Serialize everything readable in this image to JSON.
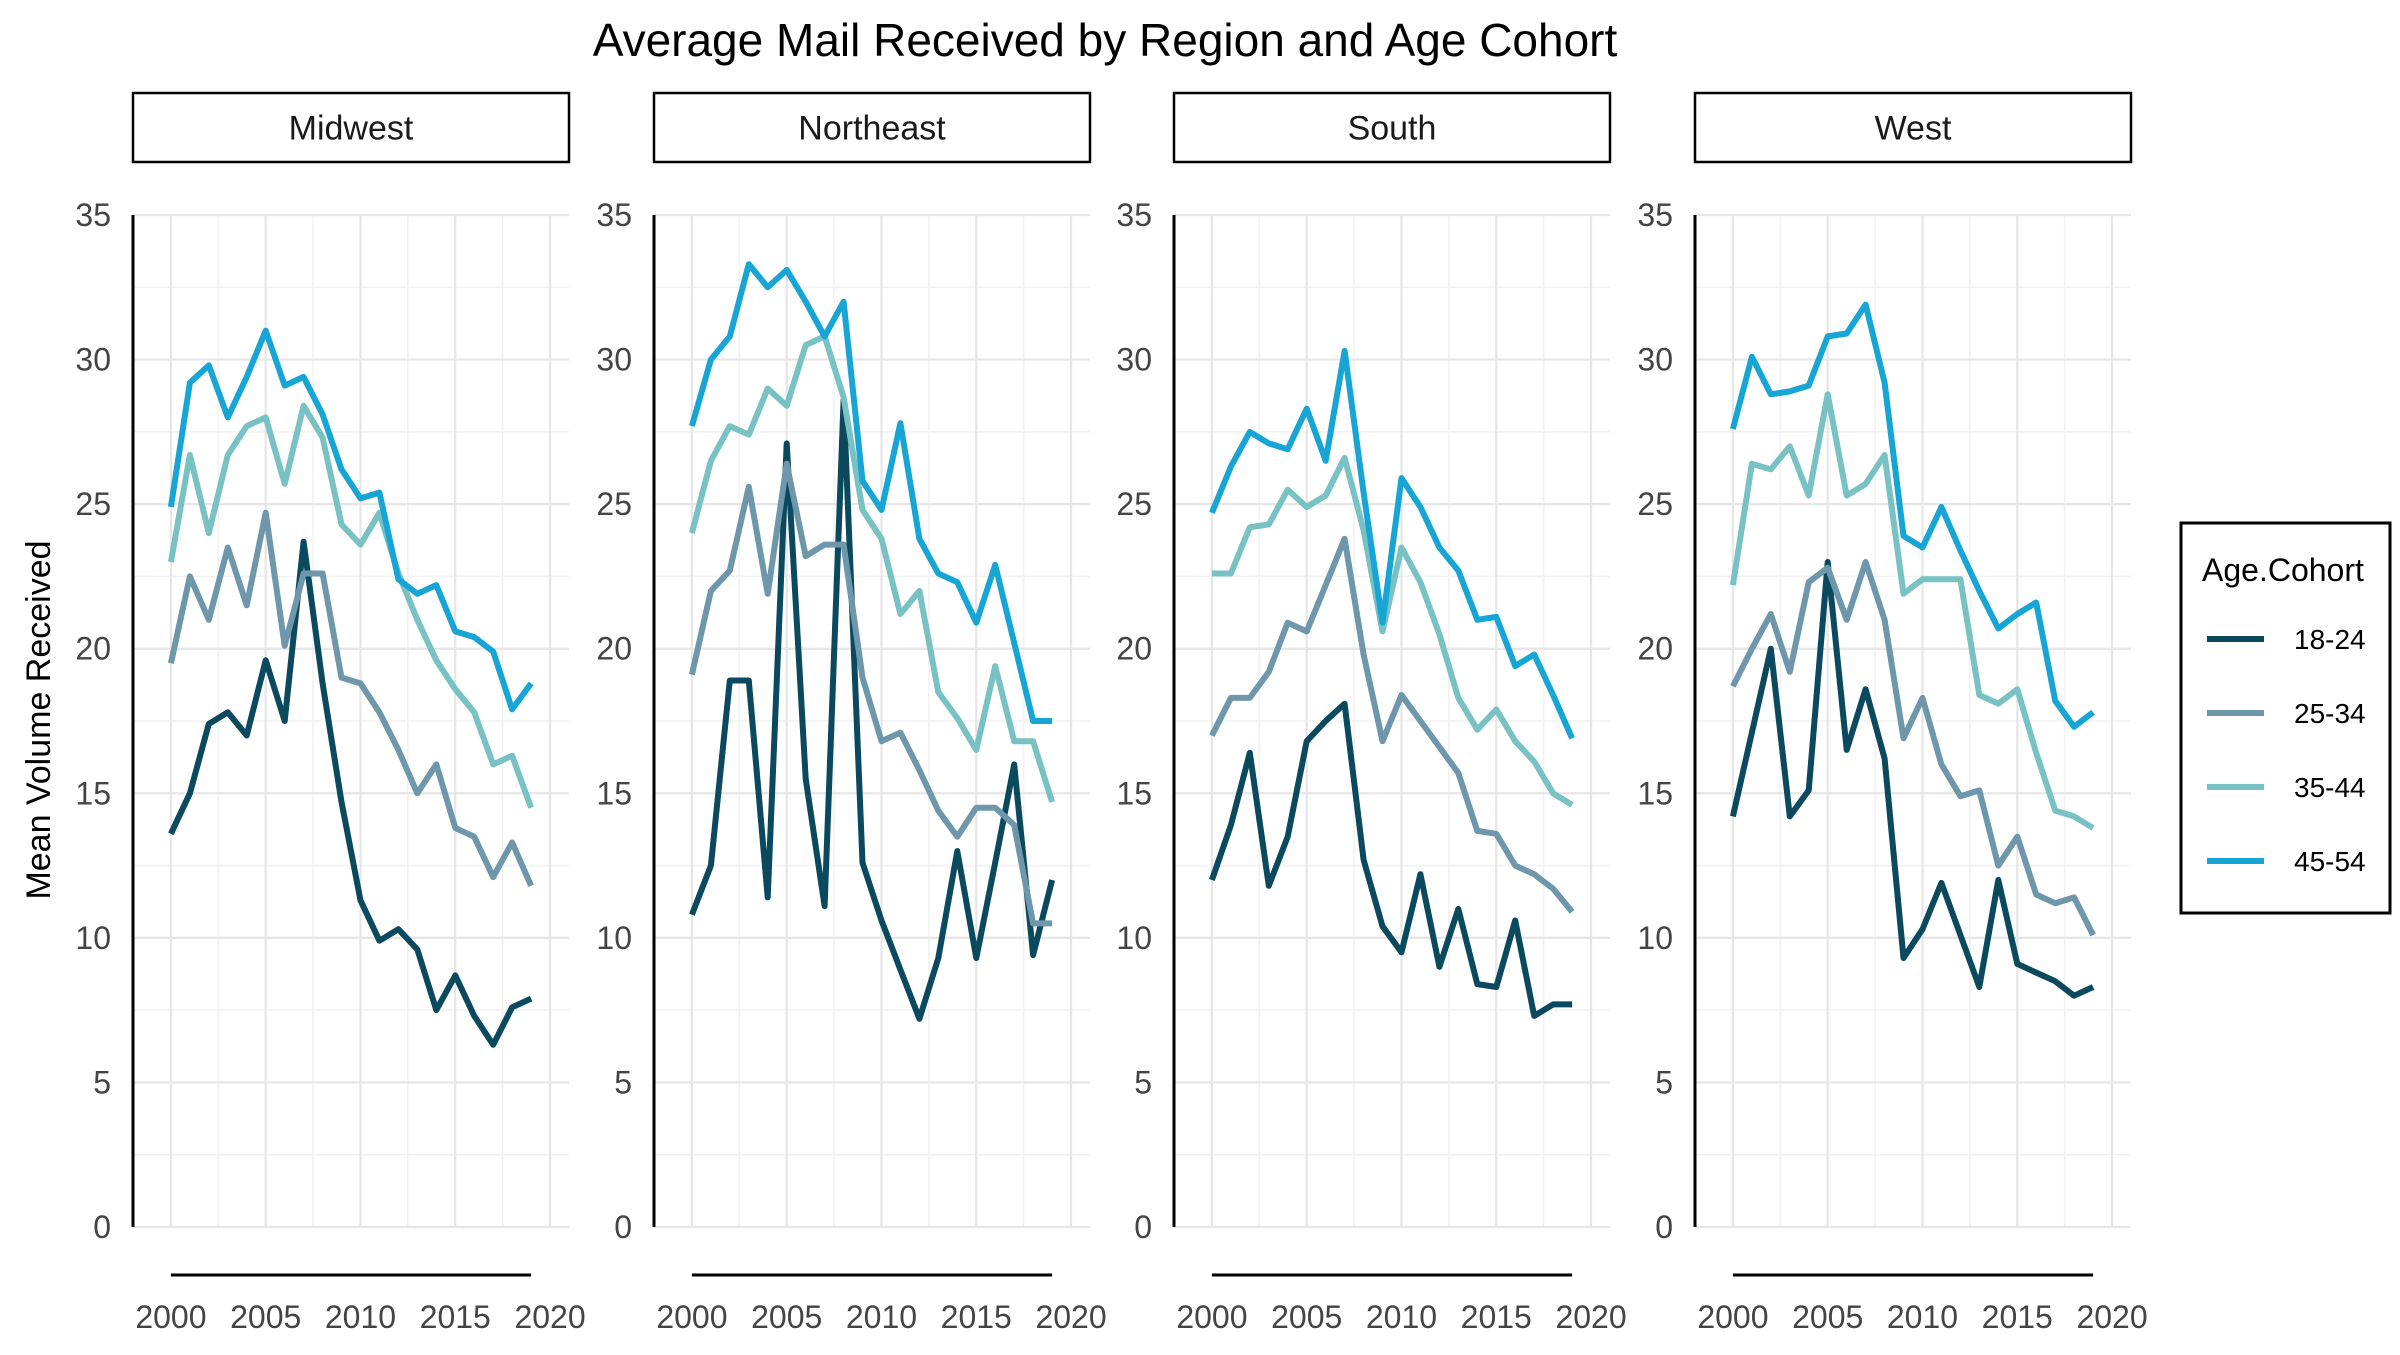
{
  "chart_data": {
    "type": "line",
    "title": "Average Mail Received by Region and Age Cohort",
    "ylabel": "Mean Volume Received",
    "xlabel": "",
    "xlim": [
      1998,
      2021
    ],
    "ylim": [
      0,
      35
    ],
    "x_ticks": [
      2000,
      2005,
      2010,
      2015,
      2020
    ],
    "y_ticks": [
      0,
      5,
      10,
      15,
      20,
      25,
      30,
      35
    ],
    "grid": true,
    "legend": {
      "title": "Age.Cohort",
      "position": "right",
      "entries": [
        "18-24",
        "25-34",
        "35-44",
        "45-54"
      ]
    },
    "colors": {
      "18-24": "#0b4a5e",
      "25-34": "#6e97ab",
      "35-44": "#79c2c4",
      "45-54": "#17a5d5"
    },
    "x": [
      2000,
      2001,
      2002,
      2003,
      2004,
      2005,
      2006,
      2007,
      2008,
      2009,
      2010,
      2011,
      2012,
      2013,
      2014,
      2015,
      2016,
      2017,
      2018,
      2019
    ],
    "panels": [
      {
        "region": "Midwest",
        "series": [
          {
            "name": "18-24",
            "values": [
              13.6,
              15.0,
              17.4,
              17.8,
              17.0,
              19.6,
              17.5,
              23.7,
              18.8,
              14.7,
              11.3,
              9.9,
              10.3,
              9.6,
              7.5,
              8.7,
              7.3,
              6.3,
              7.6,
              7.9
            ]
          },
          {
            "name": "25-34",
            "values": [
              19.5,
              22.5,
              21.0,
              23.5,
              21.5,
              24.7,
              20.1,
              22.6,
              22.6,
              19.0,
              18.8,
              17.8,
              16.5,
              15.0,
              16.0,
              13.8,
              13.5,
              12.1,
              13.3,
              11.8
            ]
          },
          {
            "name": "35-44",
            "values": [
              23.0,
              26.7,
              24.0,
              26.7,
              27.7,
              28.0,
              25.7,
              28.4,
              27.3,
              24.3,
              23.6,
              24.7,
              22.6,
              21.0,
              19.6,
              18.6,
              17.8,
              16.0,
              16.3,
              14.5
            ]
          },
          {
            "name": "45-54",
            "values": [
              24.9,
              29.2,
              29.8,
              28.0,
              29.4,
              31.0,
              29.1,
              29.4,
              28.1,
              26.2,
              25.2,
              25.4,
              22.4,
              21.9,
              22.2,
              20.6,
              20.4,
              19.9,
              17.9,
              18.8
            ]
          }
        ]
      },
      {
        "region": "Northeast",
        "series": [
          {
            "name": "18-24",
            "values": [
              10.8,
              12.5,
              18.9,
              18.9,
              11.4,
              27.1,
              15.5,
              11.1,
              28.6,
              12.6,
              10.6,
              8.9,
              7.2,
              9.3,
              13.0,
              9.3,
              12.6,
              16.0,
              9.4,
              12.0
            ]
          },
          {
            "name": "25-34",
            "values": [
              19.1,
              22.0,
              22.7,
              25.6,
              21.9,
              26.4,
              23.2,
              23.6,
              23.6,
              19.0,
              16.8,
              17.1,
              15.8,
              14.4,
              13.5,
              14.5,
              14.5,
              13.9,
              10.5,
              10.5
            ]
          },
          {
            "name": "35-44",
            "values": [
              24.0,
              26.5,
              27.7,
              27.4,
              29.0,
              28.4,
              30.5,
              30.8,
              28.7,
              24.8,
              23.8,
              21.2,
              22.0,
              18.5,
              17.6,
              16.5,
              19.4,
              16.8,
              16.8,
              14.7
            ]
          },
          {
            "name": "45-54",
            "values": [
              27.7,
              30.0,
              30.8,
              33.3,
              32.5,
              33.1,
              32.0,
              30.8,
              32.0,
              25.8,
              24.8,
              27.8,
              23.8,
              22.6,
              22.3,
              20.9,
              22.9,
              20.2,
              17.5,
              17.5
            ]
          }
        ]
      },
      {
        "region": "South",
        "series": [
          {
            "name": "18-24",
            "values": [
              12.0,
              13.9,
              16.4,
              11.8,
              13.5,
              16.8,
              17.5,
              18.1,
              12.7,
              10.4,
              9.5,
              12.2,
              9.0,
              11.0,
              8.4,
              8.3,
              10.6,
              7.3,
              7.7,
              7.7
            ]
          },
          {
            "name": "25-34",
            "values": [
              17.0,
              18.3,
              18.3,
              19.2,
              20.9,
              20.6,
              22.2,
              23.8,
              19.8,
              16.8,
              18.4,
              17.5,
              16.6,
              15.7,
              13.7,
              13.6,
              12.5,
              12.2,
              11.7,
              10.9
            ]
          },
          {
            "name": "35-44",
            "values": [
              22.6,
              22.6,
              24.2,
              24.3,
              25.5,
              24.9,
              25.3,
              26.6,
              24.1,
              20.6,
              23.5,
              22.3,
              20.5,
              18.3,
              17.2,
              17.9,
              16.8,
              16.1,
              15.0,
              14.6
            ]
          },
          {
            "name": "45-54",
            "values": [
              24.7,
              26.3,
              27.5,
              27.1,
              26.9,
              28.3,
              26.5,
              30.3,
              25.4,
              20.9,
              25.9,
              24.9,
              23.5,
              22.7,
              21.0,
              21.1,
              19.4,
              19.8,
              18.4,
              16.9
            ]
          }
        ]
      },
      {
        "region": "West",
        "series": [
          {
            "name": "18-24",
            "values": [
              14.2,
              17.1,
              20.0,
              14.2,
              15.1,
              23.0,
              16.5,
              18.6,
              16.2,
              9.3,
              10.3,
              11.9,
              10.1,
              8.3,
              12.0,
              9.1,
              8.8,
              8.5,
              8.0,
              8.3
            ]
          },
          {
            "name": "25-34",
            "values": [
              18.7,
              20.0,
              21.2,
              19.2,
              22.3,
              22.8,
              21.0,
              23.0,
              21.0,
              16.9,
              18.3,
              16.0,
              14.9,
              15.1,
              12.5,
              13.5,
              11.5,
              11.2,
              11.4,
              10.1
            ]
          },
          {
            "name": "35-44",
            "values": [
              22.2,
              26.4,
              26.2,
              27.0,
              25.3,
              28.8,
              25.3,
              25.7,
              26.7,
              21.9,
              22.4,
              22.4,
              22.4,
              18.4,
              18.1,
              18.6,
              16.4,
              14.4,
              14.2,
              13.8
            ]
          },
          {
            "name": "45-54",
            "values": [
              27.6,
              30.1,
              28.8,
              28.9,
              29.1,
              30.8,
              30.9,
              31.9,
              29.2,
              23.9,
              23.5,
              24.9,
              23.4,
              22.0,
              20.7,
              21.2,
              21.6,
              18.2,
              17.3,
              17.8
            ]
          }
        ]
      }
    ]
  }
}
